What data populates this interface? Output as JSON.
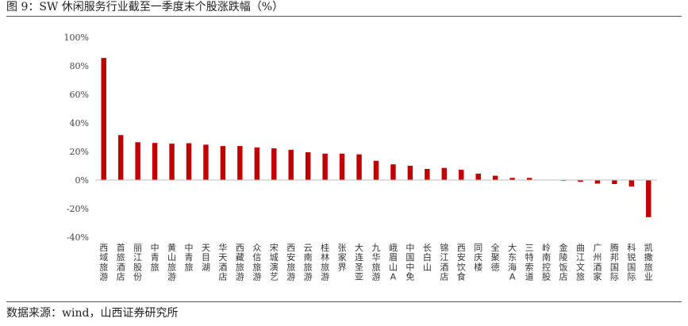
{
  "figure": {
    "title": "图 9：SW 休闲服务行业截至一季度末个股涨跌幅（%）",
    "source": "数据来源：wind，山西证券研究所"
  },
  "colors": {
    "bar": "#c00000",
    "axis": "#bfbfbf"
  },
  "chart_data": {
    "type": "bar",
    "title": "",
    "xlabel": "",
    "ylabel": "",
    "ylim": [
      -40,
      100
    ],
    "yticks": [
      -40,
      -20,
      0,
      20,
      40,
      60,
      80,
      100
    ],
    "ytick_suffix": "%",
    "grid": false,
    "categories": [
      "西域旅游",
      "首旅酒店",
      "丽江股份",
      "中青旅",
      "黄山旅游",
      "中青旅",
      "天目湖",
      "华天酒店",
      "西藏旅游",
      "众信旅游",
      "宋城演艺",
      "西安旅游",
      "云南旅游",
      "桂林旅游",
      "张家界",
      "大连圣亚",
      "九华旅游",
      "峨眉山A",
      "中国中免",
      "长白山",
      "锦江酒店",
      "西安饮食",
      "同庆楼",
      "全聚德",
      "大东海A",
      "三特索道",
      "岭南控股",
      "金陵饭店",
      "曲江文旅",
      "广州酒家",
      "腾邦国际",
      "科锐国际",
      "凯撒旅业"
    ],
    "values": [
      85.5,
      31.5,
      26.5,
      26.0,
      25.5,
      25.8,
      24.8,
      23.8,
      23.8,
      22.8,
      22.2,
      21.2,
      19.5,
      18.5,
      18.5,
      18.0,
      13.5,
      11.0,
      10.0,
      7.8,
      8.5,
      7.2,
      4.5,
      3.0,
      1.5,
      1.5,
      0.2,
      -0.5,
      -1.2,
      -2.5,
      -2.8,
      -4.5,
      -26.0
    ]
  }
}
